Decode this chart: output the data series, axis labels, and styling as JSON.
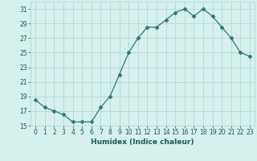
{
  "x": [
    0,
    1,
    2,
    3,
    4,
    5,
    6,
    7,
    8,
    9,
    10,
    11,
    12,
    13,
    14,
    15,
    16,
    17,
    18,
    19,
    20,
    21,
    22,
    23
  ],
  "y": [
    18.5,
    17.5,
    17.0,
    16.5,
    15.5,
    15.5,
    15.5,
    17.5,
    19.0,
    22.0,
    25.0,
    27.0,
    28.5,
    28.5,
    29.5,
    30.5,
    31.0,
    30.0,
    31.0,
    30.0,
    28.5,
    27.0,
    25.0,
    24.5
  ],
  "xlabel": "Humidex (Indice chaleur)",
  "line_color": "#2e7b6e",
  "marker": "D",
  "marker_size": 2.5,
  "bg_color": "#d6f0ee",
  "grid_color": "#b8dbd6",
  "text_color": "#1a5c50",
  "ylim": [
    15,
    32
  ],
  "xlim": [
    -0.5,
    23.5
  ],
  "yticks": [
    15,
    17,
    19,
    21,
    23,
    25,
    27,
    29,
    31
  ],
  "xticks": [
    0,
    1,
    2,
    3,
    4,
    5,
    6,
    7,
    8,
    9,
    10,
    11,
    12,
    13,
    14,
    15,
    16,
    17,
    18,
    19,
    20,
    21,
    22,
    23
  ],
  "xtick_labels": [
    "0",
    "1",
    "2",
    "3",
    "4",
    "5",
    "6",
    "7",
    "8",
    "9",
    "10",
    "11",
    "12",
    "13",
    "14",
    "15",
    "16",
    "17",
    "18",
    "19",
    "20",
    "21",
    "22",
    "23"
  ],
  "xlabel_fontsize": 6.5,
  "tick_fontsize": 5.5
}
